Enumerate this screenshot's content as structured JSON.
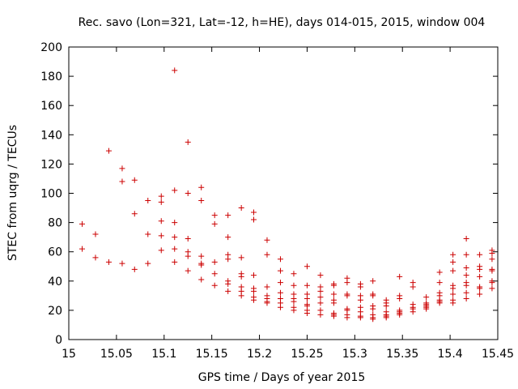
{
  "chart_data": {
    "type": "scatter",
    "title": "Rec. savo (Lon=321, Lat=-12, h=HE), days 014-015, 2015, window 004",
    "xlabel": "GPS time / Days of year 2015",
    "ylabel": "STEC from uqrg / TECUs",
    "xlim": [
      15,
      15.45
    ],
    "ylim": [
      0,
      200
    ],
    "x_ticks": [
      "15",
      "15.05",
      "15.1",
      "15.15",
      "15.2",
      "15.25",
      "15.3",
      "15.35",
      "15.4",
      "15.45"
    ],
    "y_ticks": [
      "0",
      "20",
      "40",
      "60",
      "80",
      "100",
      "120",
      "140",
      "160",
      "180",
      "200"
    ],
    "grid": false,
    "legend": "none",
    "marker": "plus",
    "color": "#cc0000",
    "points": [
      [
        15.014,
        79
      ],
      [
        15.014,
        62
      ],
      [
        15.028,
        72
      ],
      [
        15.028,
        56
      ],
      [
        15.042,
        129
      ],
      [
        15.042,
        53
      ],
      [
        15.056,
        117
      ],
      [
        15.056,
        108
      ],
      [
        15.056,
        52
      ],
      [
        15.069,
        109
      ],
      [
        15.069,
        86
      ],
      [
        15.069,
        48
      ],
      [
        15.083,
        95
      ],
      [
        15.083,
        72
      ],
      [
        15.083,
        52
      ],
      [
        15.097,
        98
      ],
      [
        15.097,
        94
      ],
      [
        15.097,
        81
      ],
      [
        15.097,
        71
      ],
      [
        15.097,
        61
      ],
      [
        15.111,
        184
      ],
      [
        15.111,
        102
      ],
      [
        15.111,
        80
      ],
      [
        15.111,
        70
      ],
      [
        15.111,
        62
      ],
      [
        15.111,
        53
      ],
      [
        15.125,
        135
      ],
      [
        15.125,
        100
      ],
      [
        15.125,
        69
      ],
      [
        15.125,
        60
      ],
      [
        15.125,
        57
      ],
      [
        15.125,
        47
      ],
      [
        15.139,
        104
      ],
      [
        15.139,
        95
      ],
      [
        15.139,
        57
      ],
      [
        15.139,
        52
      ],
      [
        15.139,
        51
      ],
      [
        15.139,
        41
      ],
      [
        15.153,
        85
      ],
      [
        15.153,
        79
      ],
      [
        15.153,
        53
      ],
      [
        15.153,
        45
      ],
      [
        15.153,
        37
      ],
      [
        15.167,
        85
      ],
      [
        15.167,
        70
      ],
      [
        15.167,
        58
      ],
      [
        15.167,
        55
      ],
      [
        15.167,
        40
      ],
      [
        15.167,
        38
      ],
      [
        15.167,
        33
      ],
      [
        15.181,
        90
      ],
      [
        15.181,
        56
      ],
      [
        15.181,
        45
      ],
      [
        15.181,
        43
      ],
      [
        15.181,
        36
      ],
      [
        15.181,
        33
      ],
      [
        15.181,
        30
      ],
      [
        15.194,
        87
      ],
      [
        15.194,
        82
      ],
      [
        15.194,
        44
      ],
      [
        15.194,
        35
      ],
      [
        15.194,
        33
      ],
      [
        15.194,
        29
      ],
      [
        15.194,
        27
      ],
      [
        15.208,
        68
      ],
      [
        15.208,
        58
      ],
      [
        15.208,
        36
      ],
      [
        15.208,
        30
      ],
      [
        15.208,
        28
      ],
      [
        15.208,
        26
      ],
      [
        15.208,
        25
      ],
      [
        15.222,
        55
      ],
      [
        15.222,
        47
      ],
      [
        15.222,
        39
      ],
      [
        15.222,
        32
      ],
      [
        15.222,
        28
      ],
      [
        15.222,
        25
      ],
      [
        15.222,
        22
      ],
      [
        15.236,
        45
      ],
      [
        15.236,
        37
      ],
      [
        15.236,
        31
      ],
      [
        15.236,
        28
      ],
      [
        15.236,
        26
      ],
      [
        15.236,
        22
      ],
      [
        15.236,
        20
      ],
      [
        15.25,
        50
      ],
      [
        15.25,
        37
      ],
      [
        15.25,
        31
      ],
      [
        15.25,
        28
      ],
      [
        15.25,
        24
      ],
      [
        15.25,
        23
      ],
      [
        15.25,
        20
      ],
      [
        15.25,
        18
      ],
      [
        15.264,
        44
      ],
      [
        15.264,
        36
      ],
      [
        15.264,
        33
      ],
      [
        15.264,
        29
      ],
      [
        15.264,
        25
      ],
      [
        15.264,
        20
      ],
      [
        15.264,
        17
      ],
      [
        15.278,
        38
      ],
      [
        15.278,
        37
      ],
      [
        15.278,
        31
      ],
      [
        15.278,
        27
      ],
      [
        15.278,
        25
      ],
      [
        15.278,
        18
      ],
      [
        15.278,
        17
      ],
      [
        15.278,
        16
      ],
      [
        15.292,
        42
      ],
      [
        15.292,
        39
      ],
      [
        15.292,
        31
      ],
      [
        15.292,
        30
      ],
      [
        15.292,
        21
      ],
      [
        15.292,
        20
      ],
      [
        15.292,
        17
      ],
      [
        15.292,
        15
      ],
      [
        15.306,
        38
      ],
      [
        15.306,
        36
      ],
      [
        15.306,
        30
      ],
      [
        15.306,
        27
      ],
      [
        15.306,
        22
      ],
      [
        15.306,
        19
      ],
      [
        15.306,
        16
      ],
      [
        15.306,
        15
      ],
      [
        15.319,
        40
      ],
      [
        15.319,
        31
      ],
      [
        15.319,
        30
      ],
      [
        15.319,
        23
      ],
      [
        15.319,
        21
      ],
      [
        15.319,
        17
      ],
      [
        15.319,
        15
      ],
      [
        15.319,
        14
      ],
      [
        15.333,
        27
      ],
      [
        15.333,
        25
      ],
      [
        15.333,
        23
      ],
      [
        15.333,
        19
      ],
      [
        15.333,
        17
      ],
      [
        15.333,
        16
      ],
      [
        15.333,
        15
      ],
      [
        15.347,
        43
      ],
      [
        15.347,
        30
      ],
      [
        15.347,
        28
      ],
      [
        15.347,
        20
      ],
      [
        15.347,
        19
      ],
      [
        15.347,
        18
      ],
      [
        15.347,
        17
      ],
      [
        15.361,
        39
      ],
      [
        15.361,
        36
      ],
      [
        15.361,
        24
      ],
      [
        15.361,
        22
      ],
      [
        15.361,
        21
      ],
      [
        15.361,
        19
      ],
      [
        15.375,
        29
      ],
      [
        15.375,
        25
      ],
      [
        15.375,
        24
      ],
      [
        15.375,
        23
      ],
      [
        15.375,
        22
      ],
      [
        15.375,
        21
      ],
      [
        15.389,
        46
      ],
      [
        15.389,
        39
      ],
      [
        15.389,
        32
      ],
      [
        15.389,
        30
      ],
      [
        15.389,
        27
      ],
      [
        15.389,
        26
      ],
      [
        15.389,
        25
      ],
      [
        15.403,
        58
      ],
      [
        15.403,
        53
      ],
      [
        15.403,
        47
      ],
      [
        15.403,
        37
      ],
      [
        15.403,
        35
      ],
      [
        15.403,
        31
      ],
      [
        15.403,
        27
      ],
      [
        15.403,
        25
      ],
      [
        15.417,
        69
      ],
      [
        15.417,
        58
      ],
      [
        15.417,
        49
      ],
      [
        15.417,
        44
      ],
      [
        15.417,
        39
      ],
      [
        15.417,
        37
      ],
      [
        15.417,
        32
      ],
      [
        15.417,
        28
      ],
      [
        15.431,
        58
      ],
      [
        15.431,
        50
      ],
      [
        15.431,
        48
      ],
      [
        15.431,
        43
      ],
      [
        15.431,
        36
      ],
      [
        15.431,
        35
      ],
      [
        15.431,
        31
      ],
      [
        15.444,
        61
      ],
      [
        15.444,
        59
      ],
      [
        15.444,
        55
      ],
      [
        15.444,
        48
      ],
      [
        15.444,
        47
      ],
      [
        15.444,
        40
      ],
      [
        15.444,
        39
      ],
      [
        15.444,
        35
      ]
    ]
  }
}
